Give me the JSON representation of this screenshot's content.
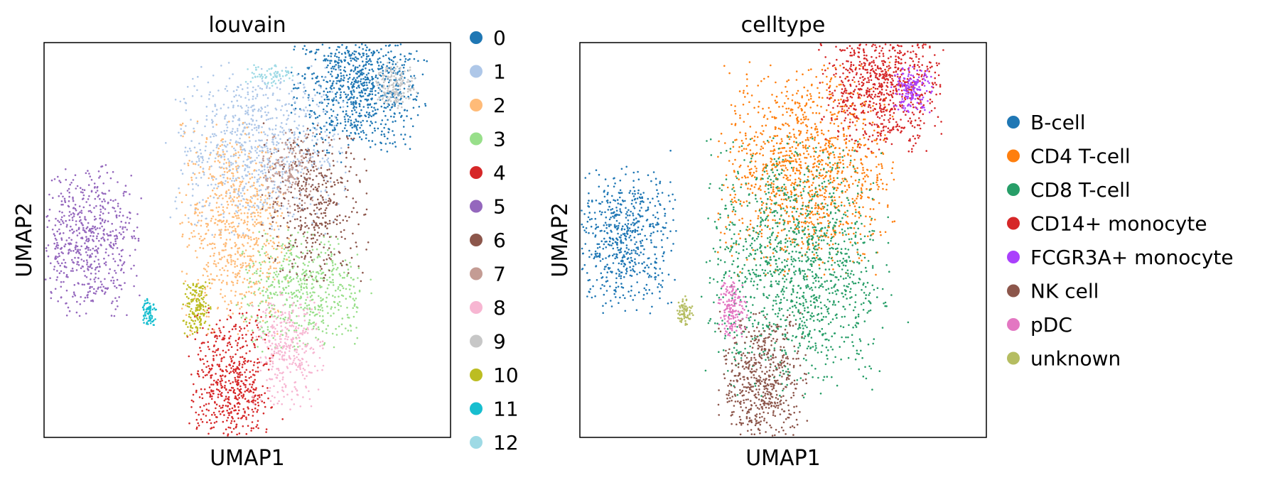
{
  "chart_data": [
    {
      "type": "scatter",
      "title": "louvain",
      "xlabel": "UMAP1",
      "ylabel": "UMAP2",
      "grid": false,
      "ticks": false,
      "legend_position": "right",
      "series": [
        {
          "name": "0",
          "color": "#1f77b4",
          "cx": 9.3,
          "cy": 8.9,
          "rx": 1.15,
          "ry": 1.0,
          "n": 900
        },
        {
          "name": "1",
          "color": "#aec7e8",
          "cx": 6.3,
          "cy": 7.3,
          "rx": 1.5,
          "ry": 1.25,
          "n": 800
        },
        {
          "name": "2",
          "color": "#ffbb78",
          "cx": 5.6,
          "cy": 5.3,
          "rx": 0.95,
          "ry": 1.55,
          "n": 700
        },
        {
          "name": "3",
          "color": "#98df8a",
          "cx": 7.7,
          "cy": 3.7,
          "rx": 1.15,
          "ry": 0.9,
          "n": 520
        },
        {
          "name": "4",
          "color": "#d62728",
          "cx": 5.5,
          "cy": 1.3,
          "rx": 0.75,
          "ry": 1.15,
          "n": 600
        },
        {
          "name": "5",
          "color": "#9467bd",
          "cx": 1.3,
          "cy": 5.0,
          "rx": 0.9,
          "ry": 1.1,
          "n": 600
        },
        {
          "name": "6",
          "color": "#8c564b",
          "cx": 8.0,
          "cy": 5.9,
          "rx": 0.9,
          "ry": 1.2,
          "n": 420
        },
        {
          "name": "7",
          "color": "#c49c94",
          "cx": 7.2,
          "cy": 6.7,
          "rx": 0.5,
          "ry": 0.6,
          "n": 160
        },
        {
          "name": "8",
          "color": "#f7b6d2",
          "cx": 7.2,
          "cy": 2.2,
          "rx": 0.6,
          "ry": 0.85,
          "n": 340
        },
        {
          "name": "9",
          "color": "#c7c7c7",
          "cx": 10.4,
          "cy": 8.9,
          "rx": 0.35,
          "ry": 0.35,
          "n": 160
        },
        {
          "name": "10",
          "color": "#bcbd22",
          "cx": 4.5,
          "cy": 3.3,
          "rx": 0.25,
          "ry": 0.45,
          "n": 160
        },
        {
          "name": "11",
          "color": "#17becf",
          "cx": 3.1,
          "cy": 3.2,
          "rx": 0.14,
          "ry": 0.22,
          "n": 70
        },
        {
          "name": "12",
          "color": "#9edae5",
          "cx": 6.6,
          "cy": 9.2,
          "rx": 0.45,
          "ry": 0.18,
          "n": 70
        }
      ]
    },
    {
      "type": "scatter",
      "title": "celltype",
      "xlabel": "UMAP1",
      "ylabel": "UMAP2",
      "grid": false,
      "ticks": false,
      "legend_position": "right",
      "series": [
        {
          "name": "B-cell",
          "color": "#1f77b4",
          "cx": 1.3,
          "cy": 5.0,
          "rx": 0.9,
          "ry": 1.1,
          "n": 600
        },
        {
          "name": "CD4 T-cell",
          "color": "#ff7f0e",
          "cx": 6.7,
          "cy": 6.8,
          "rx": 1.5,
          "ry": 1.55,
          "n": 1200
        },
        {
          "name": "CD8 T-cell",
          "color": "#279e68",
          "cx": 6.4,
          "cy": 4.3,
          "rx": 1.6,
          "ry": 1.9,
          "n": 1300
        },
        {
          "name": "CD14+ monocyte",
          "color": "#d62728",
          "cx": 8.9,
          "cy": 8.9,
          "rx": 1.05,
          "ry": 0.95,
          "n": 800
        },
        {
          "name": "FCGR3A+ monocyte",
          "color": "#aa40fc",
          "cx": 9.8,
          "cy": 8.8,
          "rx": 0.35,
          "ry": 0.35,
          "n": 160
        },
        {
          "name": "NK cell",
          "color": "#8c564b",
          "cx": 5.4,
          "cy": 1.3,
          "rx": 0.75,
          "ry": 1.1,
          "n": 600
        },
        {
          "name": "pDC",
          "color": "#e377c2",
          "cx": 4.5,
          "cy": 3.3,
          "rx": 0.25,
          "ry": 0.45,
          "n": 160
        },
        {
          "name": "unknown",
          "color": "#b5bd61",
          "cx": 3.1,
          "cy": 3.2,
          "rx": 0.14,
          "ry": 0.22,
          "n": 70
        }
      ]
    }
  ]
}
